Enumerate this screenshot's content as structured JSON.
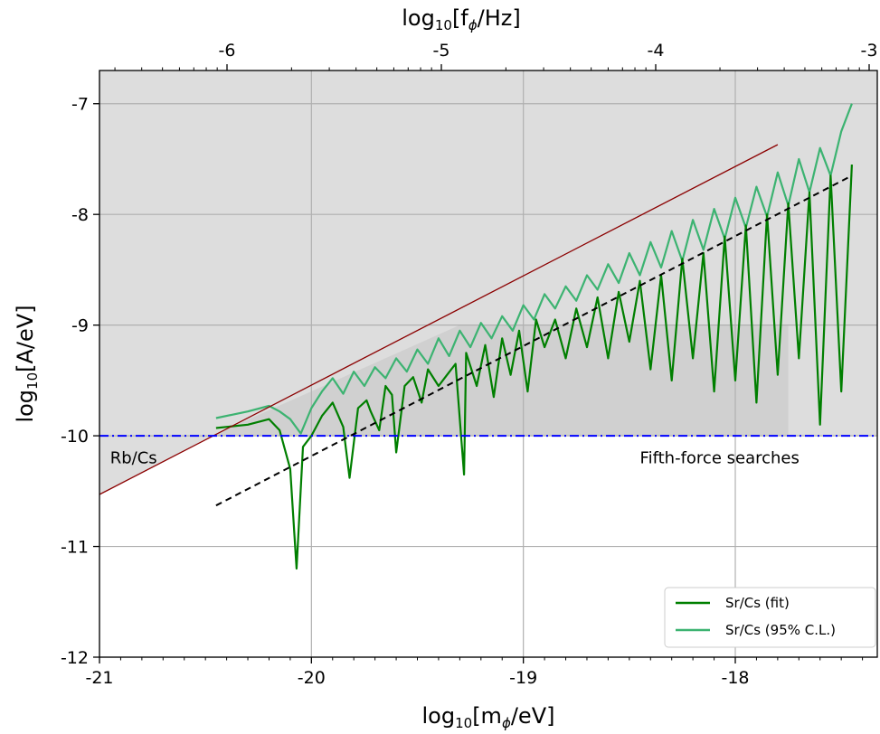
{
  "chart_data": {
    "type": "line",
    "title": "",
    "xlabel": "log10[mφ/eV]",
    "ylabel": "log10[A/eV]",
    "top_xlabel": "log10[fφ/Hz]",
    "xlim": [
      -21,
      -17.33
    ],
    "ylim": [
      -12,
      -6.7
    ],
    "x_ticks": [
      -21,
      -20,
      -19,
      -18
    ],
    "x_tick_labels": [
      "-21",
      "-20",
      "-19",
      "-18"
    ],
    "y_ticks": [
      -12,
      -11,
      -10,
      -9,
      -8,
      -7
    ],
    "y_tick_labels": [
      "-12",
      "-11",
      "-10",
      "-9",
      "-8",
      "-7"
    ],
    "top_x_ticks": [
      -6,
      -5,
      -4,
      -3
    ],
    "top_x_tick_labels": [
      "-6",
      "-5",
      "-4",
      "-3"
    ],
    "grid": true,
    "legend_position": "bottom-right",
    "legend": [
      "Sr/Cs (fit)",
      "Sr/Cs (95% C.L.)"
    ],
    "colors": {
      "fit": "#007f00",
      "cl95": "#3cb371",
      "rbcs": "#8b0000",
      "fifth_force": "#0000ff",
      "trend": "#000000",
      "excluded_region": "#dddddd",
      "excluded_region_inner": "#d0d0d0"
    },
    "series": [
      {
        "name": "Sr/Cs (fit)",
        "style": "solid",
        "x": [
          -20.45,
          -20.3,
          -20.2,
          -20.15,
          -20.1,
          -20.07,
          -20.04,
          -20.0,
          -19.95,
          -19.9,
          -19.85,
          -19.82,
          -19.78,
          -19.74,
          -19.72,
          -19.68,
          -19.65,
          -19.62,
          -19.6,
          -19.56,
          -19.52,
          -19.48,
          -19.45,
          -19.4,
          -19.36,
          -19.32,
          -19.28,
          -19.27,
          -19.22,
          -19.18,
          -19.14,
          -19.1,
          -19.06,
          -19.02,
          -18.98,
          -18.94,
          -18.9,
          -18.85,
          -18.8,
          -18.75,
          -18.7,
          -18.65,
          -18.6,
          -18.55,
          -18.5,
          -18.45,
          -18.4,
          -18.35,
          -18.3,
          -18.25,
          -18.2,
          -18.15,
          -18.1,
          -18.05,
          -18.0,
          -17.95,
          -17.9,
          -17.85,
          -17.8,
          -17.75,
          -17.7,
          -17.65,
          -17.6,
          -17.55,
          -17.5,
          -17.45
        ],
        "y": [
          -9.93,
          -9.9,
          -9.85,
          -9.95,
          -10.3,
          -11.2,
          -10.1,
          -10.0,
          -9.82,
          -9.7,
          -9.92,
          -10.38,
          -9.75,
          -9.68,
          -9.78,
          -9.95,
          -9.55,
          -9.63,
          -10.15,
          -9.55,
          -9.47,
          -9.7,
          -9.4,
          -9.55,
          -9.45,
          -9.35,
          -10.35,
          -9.25,
          -9.55,
          -9.18,
          -9.65,
          -9.12,
          -9.45,
          -9.05,
          -9.6,
          -8.95,
          -9.2,
          -8.95,
          -9.3,
          -8.85,
          -9.2,
          -8.75,
          -9.3,
          -8.7,
          -9.15,
          -8.6,
          -9.4,
          -8.55,
          -9.5,
          -8.4,
          -9.3,
          -8.35,
          -9.6,
          -8.2,
          -9.5,
          -8.1,
          -9.7,
          -8.0,
          -9.45,
          -7.9,
          -9.3,
          -7.8,
          -9.9,
          -7.65,
          -9.6,
          -7.55
        ]
      },
      {
        "name": "Sr/Cs (95% C.L.)",
        "style": "solid",
        "x": [
          -20.45,
          -20.3,
          -20.2,
          -20.15,
          -20.1,
          -20.05,
          -20.0,
          -19.95,
          -19.9,
          -19.85,
          -19.8,
          -19.75,
          -19.7,
          -19.65,
          -19.6,
          -19.55,
          -19.5,
          -19.45,
          -19.4,
          -19.35,
          -19.3,
          -19.25,
          -19.2,
          -19.15,
          -19.1,
          -19.05,
          -19.0,
          -18.95,
          -18.9,
          -18.85,
          -18.8,
          -18.75,
          -18.7,
          -18.65,
          -18.6,
          -18.55,
          -18.5,
          -18.45,
          -18.4,
          -18.35,
          -18.3,
          -18.25,
          -18.2,
          -18.15,
          -18.1,
          -18.05,
          -18.0,
          -17.95,
          -17.9,
          -17.85,
          -17.8,
          -17.75,
          -17.7,
          -17.65,
          -17.6,
          -17.55,
          -17.5,
          -17.45
        ],
        "y": [
          -9.84,
          -9.78,
          -9.73,
          -9.78,
          -9.85,
          -9.98,
          -9.75,
          -9.6,
          -9.48,
          -9.62,
          -9.42,
          -9.55,
          -9.38,
          -9.48,
          -9.3,
          -9.42,
          -9.22,
          -9.35,
          -9.12,
          -9.28,
          -9.05,
          -9.2,
          -8.98,
          -9.12,
          -8.92,
          -9.05,
          -8.82,
          -8.95,
          -8.72,
          -8.85,
          -8.65,
          -8.78,
          -8.55,
          -8.68,
          -8.45,
          -8.62,
          -8.35,
          -8.55,
          -8.25,
          -8.48,
          -8.15,
          -8.42,
          -8.05,
          -8.32,
          -7.95,
          -8.22,
          -7.85,
          -8.12,
          -7.75,
          -8.02,
          -7.62,
          -7.92,
          -7.5,
          -7.8,
          -7.4,
          -7.65,
          -7.25,
          -7.0
        ]
      },
      {
        "name": "Rb/Cs",
        "style": "solid",
        "x": [
          -21.0,
          -17.8
        ],
        "y": [
          -10.53,
          -7.37
        ]
      },
      {
        "name": "Fifth-force searches",
        "style": "dashdot",
        "x": [
          -21.0,
          -17.33
        ],
        "y": [
          -10.0,
          -10.0
        ]
      },
      {
        "name": "trend",
        "style": "dashed",
        "x": [
          -20.45,
          -17.45
        ],
        "y": [
          -10.63,
          -7.65
        ]
      }
    ],
    "annotations": [
      {
        "text": "Rb/Cs",
        "x": -20.95,
        "y": -10.15,
        "color": "#8b0000"
      },
      {
        "text": "Fifth-force searches",
        "x": -18.45,
        "y": -10.15,
        "color": "#0000ff"
      }
    ]
  }
}
